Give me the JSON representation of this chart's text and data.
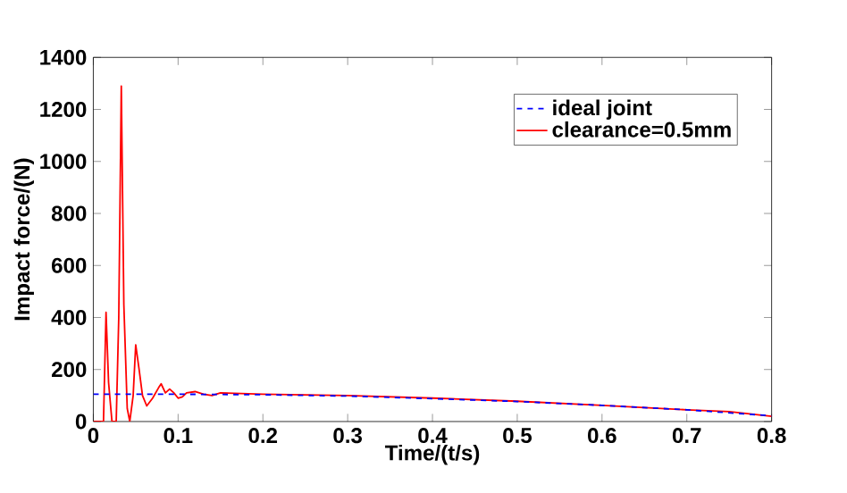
{
  "chart_data": {
    "type": "line",
    "xlabel": "Time/(t/s)",
    "ylabel": "Impact force/(N)",
    "xlim": [
      0,
      0.8
    ],
    "ylim": [
      0,
      1400
    ],
    "xticks": [
      0,
      0.1,
      0.2,
      0.3,
      0.4,
      0.5,
      0.6,
      0.7,
      0.8
    ],
    "yticks": [
      0,
      200,
      400,
      600,
      800,
      1000,
      1200,
      1400
    ],
    "legend": "top right",
    "grid": false,
    "series": [
      {
        "name": "ideal joint",
        "color": "#0000ff",
        "line_style": "dashed",
        "x": [
          0,
          0.1,
          0.2,
          0.3,
          0.4,
          0.5,
          0.6,
          0.7,
          0.8
        ],
        "values": [
          105,
          105,
          103,
          98,
          88,
          77,
          62,
          45,
          22
        ]
      },
      {
        "name": "clearance=0.5mm",
        "color": "#ff0000",
        "line_style": "solid",
        "x": [
          0,
          0.012,
          0.015,
          0.018,
          0.022,
          0.027,
          0.03,
          0.033,
          0.036,
          0.04,
          0.043,
          0.047,
          0.05,
          0.054,
          0.058,
          0.063,
          0.07,
          0.077,
          0.08,
          0.085,
          0.09,
          0.095,
          0.1,
          0.105,
          0.11,
          0.12,
          0.13,
          0.14,
          0.15,
          0.2,
          0.3,
          0.4,
          0.5,
          0.6,
          0.7,
          0.75,
          0.8
        ],
        "values": [
          0,
          0,
          420,
          150,
          0,
          0,
          400,
          1290,
          450,
          50,
          0,
          100,
          295,
          200,
          100,
          60,
          90,
          130,
          145,
          110,
          125,
          110,
          90,
          95,
          110,
          115,
          105,
          100,
          110,
          105,
          100,
          90,
          78,
          62,
          45,
          38,
          20
        ]
      }
    ]
  }
}
